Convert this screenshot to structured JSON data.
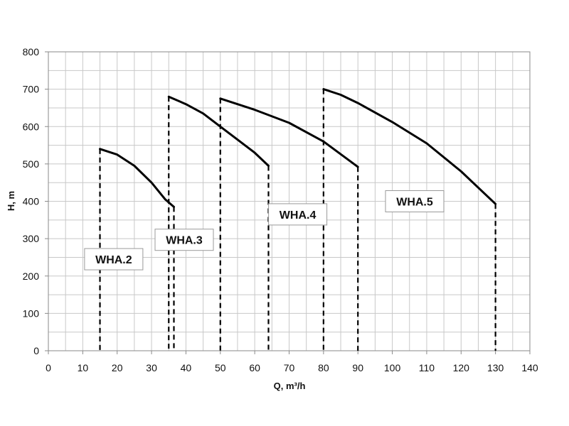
{
  "chart_data": {
    "type": "line",
    "title": "",
    "xlabel": "Q, m³/h",
    "ylabel": "H, m",
    "xlim": [
      0,
      140
    ],
    "ylim": [
      0,
      800
    ],
    "x_ticks": [
      0,
      10,
      20,
      30,
      40,
      50,
      60,
      70,
      80,
      90,
      100,
      110,
      120,
      130,
      140
    ],
    "y_ticks": [
      0,
      100,
      200,
      300,
      400,
      500,
      600,
      700,
      800
    ],
    "x_minor_step": 5,
    "y_minor_step": 50,
    "grid": true,
    "legend": "none",
    "colors": {
      "curve": "#000000",
      "grid": "#c8c8c8",
      "axis": "#8a8a8a"
    },
    "series": [
      {
        "label": "WHA.2",
        "points": [
          [
            15,
            540
          ],
          [
            20,
            525
          ],
          [
            25,
            495
          ],
          [
            30,
            450
          ],
          [
            34,
            405
          ],
          [
            36.5,
            385
          ]
        ],
        "limits": [
          15,
          36.5
        ],
        "label_pos": [
          19,
          245
        ]
      },
      {
        "label": "WHA.3",
        "points": [
          [
            35,
            680
          ],
          [
            40,
            660
          ],
          [
            45,
            635
          ],
          [
            50,
            600
          ],
          [
            55,
            565
          ],
          [
            60,
            530
          ],
          [
            64,
            495
          ]
        ],
        "limits": [
          35,
          64
        ],
        "label_pos": [
          39.5,
          297
        ]
      },
      {
        "label": "WHA.4",
        "points": [
          [
            50,
            675
          ],
          [
            60,
            645
          ],
          [
            70,
            610
          ],
          [
            80,
            560
          ],
          [
            90,
            492
          ]
        ],
        "limits": [
          50,
          90
        ],
        "label_pos": [
          72.5,
          365
        ]
      },
      {
        "label": "WHA.5",
        "points": [
          [
            80,
            700
          ],
          [
            85,
            685
          ],
          [
            90,
            663
          ],
          [
            100,
            612
          ],
          [
            110,
            555
          ],
          [
            120,
            480
          ],
          [
            130,
            393
          ]
        ],
        "limits": [
          80,
          130
        ],
        "label_pos": [
          106.5,
          400
        ]
      }
    ]
  }
}
